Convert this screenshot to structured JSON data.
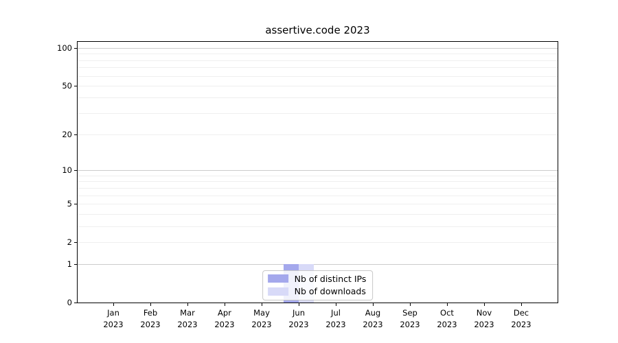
{
  "figure": {
    "title": "assertive.code 2023"
  },
  "chart_data": {
    "type": "bar",
    "title": "assertive.code 2023",
    "categories": [
      "Jan 2023",
      "Feb 2023",
      "Mar 2023",
      "Apr 2023",
      "May 2023",
      "Jun 2023",
      "Jul 2023",
      "Aug 2023",
      "Sep 2023",
      "Oct 2023",
      "Nov 2023",
      "Dec 2023"
    ],
    "series": [
      {
        "name": "Nb of distinct IPs",
        "color": "#a4a8ec",
        "values": [
          0,
          0,
          0,
          0,
          0,
          1,
          0,
          0,
          0,
          0,
          0,
          0
        ]
      },
      {
        "name": "Nb of downloads",
        "color": "#d8daf8",
        "values": [
          0,
          0,
          0,
          0,
          0,
          1,
          0,
          0,
          0,
          0,
          0,
          0
        ]
      }
    ],
    "xlabel": "",
    "ylabel": "",
    "ylim": [
      0,
      100
    ],
    "y_scale": "symlog",
    "y_tick_values": [
      0,
      1,
      2,
      5,
      10,
      20,
      50,
      100
    ],
    "y_major_gridlines": [
      1,
      10,
      100
    ],
    "y_minor_gridlines": [
      2,
      3,
      4,
      5,
      6,
      7,
      8,
      9,
      20,
      30,
      40,
      50,
      60,
      70,
      80,
      90
    ],
    "grid": true,
    "legend_position": "lower center"
  },
  "colors": {
    "spine": "#000000",
    "major_grid": "#cccccc",
    "minor_grid": "#efefef",
    "legend_border": "#c8c8c8",
    "background": "#ffffff"
  }
}
